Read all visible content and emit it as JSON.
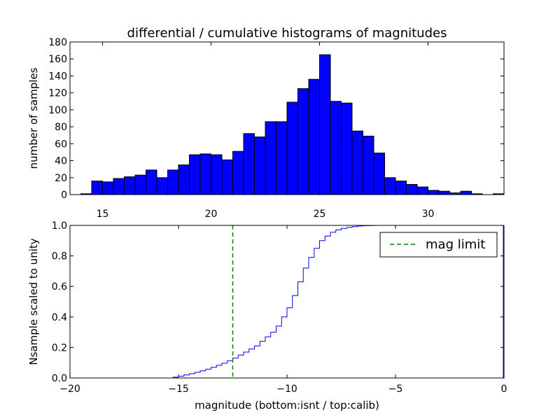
{
  "chart_data": [
    {
      "type": "bar",
      "title": "differential / cumulative histograms of magnitudes",
      "ylabel": "number of samples",
      "xlim": [
        13.5,
        33.5
      ],
      "ylim": [
        0,
        180
      ],
      "xticks": [
        15,
        20,
        25,
        30
      ],
      "yticks": [
        0,
        20,
        40,
        60,
        80,
        100,
        120,
        140,
        160,
        180
      ],
      "bin_width": 0.5,
      "bin_starts": [
        14.0,
        14.5,
        15.0,
        15.5,
        16.0,
        16.5,
        17.0,
        17.5,
        18.0,
        18.5,
        19.0,
        19.5,
        20.0,
        20.5,
        21.0,
        21.5,
        22.0,
        22.5,
        23.0,
        23.5,
        24.0,
        24.5,
        25.0,
        25.5,
        26.0,
        26.5,
        27.0,
        27.5,
        28.0,
        28.5,
        29.0,
        29.5,
        30.0,
        30.5,
        31.0,
        31.5,
        32.0,
        32.5,
        33.0
      ],
      "values": [
        1,
        16,
        15,
        19,
        21,
        23,
        29,
        20,
        29,
        35,
        47,
        48,
        47,
        41,
        51,
        72,
        68,
        86,
        86,
        109,
        125,
        136,
        165,
        110,
        108,
        75,
        69,
        49,
        20,
        16,
        12,
        9,
        5,
        4,
        2,
        4,
        1,
        0,
        1
      ]
    },
    {
      "type": "line",
      "ylabel": "Nsample scaled to unity",
      "xlabel": "magnitude (bottom:isnt / top:calib)",
      "xlim": [
        -20,
        0
      ],
      "ylim": [
        0,
        1
      ],
      "xticks": [
        -20,
        -15,
        -10,
        -5,
        0
      ],
      "yticks": [
        0.0,
        0.2,
        0.4,
        0.6,
        0.8,
        1.0
      ],
      "step_x": [
        -15.25,
        -15.0,
        -14.75,
        -14.5,
        -14.25,
        -14.0,
        -13.75,
        -13.5,
        -13.25,
        -13.0,
        -12.75,
        -12.5,
        -12.25,
        -12.0,
        -11.75,
        -11.5,
        -11.25,
        -11.0,
        -10.75,
        -10.5,
        -10.25,
        -10.0,
        -9.75,
        -9.5,
        -9.25,
        -9.0,
        -8.75,
        -8.5,
        -8.25,
        -8.0,
        -7.75,
        -7.5,
        -7.25,
        -7.0,
        -6.75,
        -6.5,
        -6.25,
        -6.0
      ],
      "step_y": [
        0.005,
        0.012,
        0.02,
        0.028,
        0.037,
        0.047,
        0.058,
        0.07,
        0.083,
        0.097,
        0.113,
        0.13,
        0.15,
        0.17,
        0.19,
        0.21,
        0.24,
        0.27,
        0.3,
        0.34,
        0.4,
        0.46,
        0.54,
        0.63,
        0.72,
        0.79,
        0.85,
        0.9,
        0.93,
        0.955,
        0.97,
        0.98,
        0.987,
        0.992,
        0.996,
        0.998,
        0.999,
        1.0
      ],
      "vline": {
        "x": -12.5,
        "label": "mag limit",
        "color": "#008000"
      },
      "series_color": "#0000ff"
    }
  ]
}
